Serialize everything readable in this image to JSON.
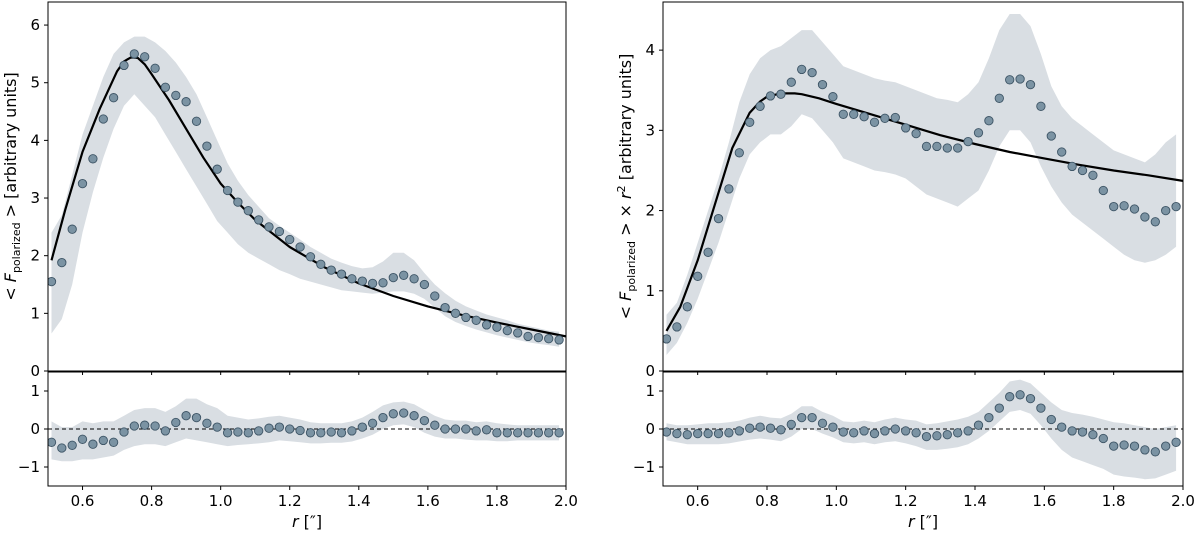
{
  "colors": {
    "band": "#d9dee3",
    "marker_fill": "#7b93a3",
    "marker_edge": "#3e5566",
    "model_line": "#000000",
    "zero_line": "#000000"
  },
  "chart_data": [
    {
      "type": "scatter",
      "name": "left-top",
      "xlabel_prefix": "r",
      "xlabel_unit": "[″]",
      "ylabel_prefix": "< F",
      "ylabel_sub": "polarized",
      "ylabel_suffix": " > [arbitrary units]",
      "xlim": [
        0.5,
        2.0
      ],
      "ylim": [
        0,
        6.4
      ],
      "xticks": [
        "0.6",
        "0.8",
        "1.0",
        "1.2",
        "1.4",
        "1.6",
        "1.8",
        "2.0"
      ],
      "yticks": [
        "0",
        "1",
        "2",
        "3",
        "4",
        "5",
        "6"
      ],
      "x": [
        0.51,
        0.54,
        0.57,
        0.6,
        0.63,
        0.66,
        0.69,
        0.72,
        0.75,
        0.78,
        0.81,
        0.84,
        0.87,
        0.9,
        0.93,
        0.96,
        0.99,
        1.02,
        1.05,
        1.08,
        1.11,
        1.14,
        1.17,
        1.2,
        1.23,
        1.26,
        1.29,
        1.32,
        1.35,
        1.38,
        1.41,
        1.44,
        1.47,
        1.5,
        1.53,
        1.56,
        1.59,
        1.62,
        1.65,
        1.68,
        1.71,
        1.74,
        1.77,
        1.8,
        1.83,
        1.86,
        1.89,
        1.92,
        1.95,
        1.98
      ],
      "y": [
        1.55,
        1.88,
        2.46,
        3.25,
        3.68,
        4.37,
        4.74,
        5.3,
        5.5,
        5.45,
        5.25,
        4.92,
        4.78,
        4.67,
        4.33,
        3.9,
        3.5,
        3.13,
        2.93,
        2.78,
        2.62,
        2.5,
        2.42,
        2.28,
        2.15,
        1.98,
        1.85,
        1.75,
        1.68,
        1.6,
        1.56,
        1.52,
        1.53,
        1.62,
        1.66,
        1.6,
        1.5,
        1.3,
        1.1,
        1.0,
        0.93,
        0.88,
        0.8,
        0.76,
        0.7,
        0.66,
        0.6,
        0.58,
        0.56,
        0.54
      ],
      "band_lower": [
        0.65,
        0.9,
        1.5,
        2.4,
        3.1,
        3.7,
        4.2,
        4.6,
        4.8,
        4.6,
        4.4,
        4.1,
        3.8,
        3.5,
        3.2,
        2.9,
        2.6,
        2.4,
        2.2,
        2.05,
        1.95,
        1.85,
        1.75,
        1.68,
        1.6,
        1.55,
        1.5,
        1.45,
        1.4,
        1.38,
        1.36,
        1.34,
        1.36,
        1.38,
        1.38,
        1.34,
        1.25,
        1.1,
        0.95,
        0.85,
        0.78,
        0.72,
        0.67,
        0.62,
        0.58,
        0.54,
        0.5,
        0.47,
        0.45,
        0.42
      ],
      "band_upper": [
        2.4,
        2.7,
        3.4,
        4.1,
        4.6,
        5.1,
        5.5,
        5.7,
        5.8,
        5.8,
        5.7,
        5.55,
        5.35,
        5.1,
        4.8,
        4.4,
        4.0,
        3.6,
        3.3,
        3.05,
        2.85,
        2.65,
        2.52,
        2.4,
        2.28,
        2.15,
        2.05,
        1.95,
        1.88,
        1.82,
        1.78,
        1.8,
        1.9,
        2.05,
        2.05,
        1.92,
        1.7,
        1.5,
        1.35,
        1.22,
        1.12,
        1.05,
        0.98,
        0.93,
        0.88,
        0.82,
        0.78,
        0.74,
        0.7,
        0.68
      ],
      "model_x": [
        0.51,
        0.55,
        0.6,
        0.65,
        0.7,
        0.72,
        0.74,
        0.76,
        0.78,
        0.8,
        0.85,
        0.9,
        0.95,
        1.0,
        1.05,
        1.1,
        1.2,
        1.3,
        1.4,
        1.5,
        1.6,
        1.7,
        1.8,
        1.9,
        2.0
      ],
      "model_y": [
        1.92,
        2.8,
        3.8,
        4.55,
        5.2,
        5.37,
        5.44,
        5.43,
        5.32,
        5.15,
        4.7,
        4.2,
        3.7,
        3.25,
        2.92,
        2.62,
        2.15,
        1.8,
        1.52,
        1.3,
        1.12,
        0.97,
        0.84,
        0.72,
        0.6
      ]
    },
    {
      "type": "scatter",
      "name": "left-bottom",
      "xlabel_prefix": "r",
      "xlabel_unit": "[″]",
      "xlim": [
        0.5,
        2.0
      ],
      "ylim": [
        -1.5,
        1.5
      ],
      "xticks": [
        "0.6",
        "0.8",
        "1.0",
        "1.2",
        "1.4",
        "1.6",
        "1.8",
        "2.0"
      ],
      "yticks": [
        "−1",
        "0",
        "1"
      ],
      "x": [
        0.51,
        0.54,
        0.57,
        0.6,
        0.63,
        0.66,
        0.69,
        0.72,
        0.75,
        0.78,
        0.81,
        0.84,
        0.87,
        0.9,
        0.93,
        0.96,
        0.99,
        1.02,
        1.05,
        1.08,
        1.11,
        1.14,
        1.17,
        1.2,
        1.23,
        1.26,
        1.29,
        1.32,
        1.35,
        1.38,
        1.41,
        1.44,
        1.47,
        1.5,
        1.53,
        1.56,
        1.59,
        1.62,
        1.65,
        1.68,
        1.71,
        1.74,
        1.77,
        1.8,
        1.83,
        1.86,
        1.89,
        1.92,
        1.95,
        1.98
      ],
      "y": [
        -0.35,
        -0.5,
        -0.43,
        -0.27,
        -0.4,
        -0.3,
        -0.35,
        -0.08,
        0.08,
        0.1,
        0.08,
        -0.05,
        0.17,
        0.35,
        0.3,
        0.15,
        0.05,
        -0.1,
        -0.08,
        -0.1,
        -0.05,
        0.02,
        0.05,
        0.0,
        -0.04,
        -0.1,
        -0.1,
        -0.08,
        -0.1,
        -0.05,
        0.05,
        0.15,
        0.3,
        0.4,
        0.42,
        0.35,
        0.22,
        0.1,
        0.0,
        0.0,
        0.0,
        -0.05,
        -0.02,
        -0.1,
        -0.1,
        -0.1,
        -0.1,
        -0.1,
        -0.1,
        -0.1
      ],
      "band_lower": [
        -0.8,
        -0.85,
        -0.85,
        -0.8,
        -0.8,
        -0.75,
        -0.7,
        -0.55,
        -0.45,
        -0.4,
        -0.4,
        -0.45,
        -0.35,
        -0.25,
        -0.3,
        -0.35,
        -0.4,
        -0.45,
        -0.42,
        -0.4,
        -0.38,
        -0.35,
        -0.3,
        -0.32,
        -0.35,
        -0.38,
        -0.38,
        -0.36,
        -0.36,
        -0.33,
        -0.25,
        -0.15,
        0.0,
        0.1,
        0.12,
        0.05,
        -0.1,
        -0.2,
        -0.25,
        -0.25,
        -0.28,
        -0.3,
        -0.3,
        -0.32,
        -0.32,
        -0.3,
        -0.3,
        -0.3,
        -0.3,
        -0.3
      ],
      "band_upper": [
        0.2,
        0.05,
        0.05,
        0.2,
        0.15,
        0.2,
        0.2,
        0.35,
        0.5,
        0.55,
        0.55,
        0.45,
        0.6,
        0.8,
        0.8,
        0.65,
        0.55,
        0.35,
        0.3,
        0.25,
        0.28,
        0.32,
        0.35,
        0.3,
        0.25,
        0.18,
        0.15,
        0.15,
        0.15,
        0.2,
        0.3,
        0.45,
        0.62,
        0.7,
        0.72,
        0.65,
        0.5,
        0.35,
        0.25,
        0.22,
        0.22,
        0.18,
        0.2,
        0.15,
        0.12,
        0.1,
        0.1,
        0.1,
        0.1,
        0.1
      ],
      "zero_line": 0
    },
    {
      "type": "scatter",
      "name": "right-top",
      "xlabel_prefix": "r",
      "xlabel_unit": "[″]",
      "ylabel_prefix": "< F",
      "ylabel_sub": "polarized",
      "ylabel_suffix": " > × r",
      "ylabel_sup": "2",
      "ylabel_tail": " [arbitrary units]",
      "xlim": [
        0.5,
        2.0
      ],
      "ylim": [
        0,
        4.6
      ],
      "xticks": [
        "0.6",
        "0.8",
        "1.0",
        "1.2",
        "1.4",
        "1.6",
        "1.8",
        "2.0"
      ],
      "yticks": [
        "0",
        "1",
        "2",
        "3",
        "4"
      ],
      "x": [
        0.51,
        0.54,
        0.57,
        0.6,
        0.63,
        0.66,
        0.69,
        0.72,
        0.75,
        0.78,
        0.81,
        0.84,
        0.87,
        0.9,
        0.93,
        0.96,
        0.99,
        1.02,
        1.05,
        1.08,
        1.11,
        1.14,
        1.17,
        1.2,
        1.23,
        1.26,
        1.29,
        1.32,
        1.35,
        1.38,
        1.41,
        1.44,
        1.47,
        1.5,
        1.53,
        1.56,
        1.59,
        1.62,
        1.65,
        1.68,
        1.71,
        1.74,
        1.77,
        1.8,
        1.83,
        1.86,
        1.89,
        1.92,
        1.95,
        1.98
      ],
      "y": [
        0.4,
        0.55,
        0.8,
        1.18,
        1.48,
        1.9,
        2.27,
        2.72,
        3.1,
        3.3,
        3.43,
        3.45,
        3.6,
        3.76,
        3.72,
        3.57,
        3.42,
        3.2,
        3.2,
        3.17,
        3.1,
        3.15,
        3.16,
        3.03,
        2.96,
        2.8,
        2.8,
        2.78,
        2.78,
        2.86,
        2.97,
        3.12,
        3.4,
        3.63,
        3.64,
        3.57,
        3.3,
        2.93,
        2.73,
        2.55,
        2.5,
        2.44,
        2.25,
        2.05,
        2.06,
        2.02,
        1.92,
        1.86,
        2.0,
        2.05
      ],
      "band_lower": [
        0.2,
        0.35,
        0.6,
        0.9,
        1.25,
        1.6,
        2.0,
        2.4,
        2.7,
        2.85,
        2.95,
        2.95,
        3.05,
        3.2,
        3.15,
        3.0,
        2.85,
        2.65,
        2.6,
        2.55,
        2.5,
        2.48,
        2.45,
        2.4,
        2.3,
        2.2,
        2.15,
        2.1,
        2.05,
        2.15,
        2.25,
        2.5,
        2.8,
        3.0,
        3.0,
        2.85,
        2.55,
        2.3,
        2.1,
        1.95,
        1.85,
        1.75,
        1.65,
        1.55,
        1.45,
        1.38,
        1.35,
        1.38,
        1.45,
        1.55
      ],
      "band_upper": [
        0.7,
        0.85,
        1.2,
        1.6,
        2.0,
        2.4,
        2.85,
        3.35,
        3.7,
        3.9,
        4.0,
        4.05,
        4.15,
        4.25,
        4.25,
        4.1,
        3.95,
        3.8,
        3.75,
        3.7,
        3.65,
        3.62,
        3.6,
        3.55,
        3.5,
        3.45,
        3.4,
        3.38,
        3.35,
        3.45,
        3.6,
        3.9,
        4.25,
        4.45,
        4.45,
        4.3,
        3.95,
        3.55,
        3.3,
        3.15,
        3.05,
        2.95,
        2.85,
        2.75,
        2.7,
        2.65,
        2.6,
        2.7,
        2.85,
        2.95
      ],
      "model_x": [
        0.51,
        0.55,
        0.6,
        0.65,
        0.7,
        0.75,
        0.78,
        0.8,
        0.83,
        0.85,
        0.88,
        0.9,
        0.95,
        1.0,
        1.1,
        1.2,
        1.3,
        1.4,
        1.5,
        1.6,
        1.7,
        1.8,
        1.9,
        2.0
      ],
      "model_y": [
        0.5,
        0.8,
        1.38,
        2.08,
        2.78,
        3.22,
        3.36,
        3.42,
        3.45,
        3.46,
        3.46,
        3.45,
        3.4,
        3.33,
        3.2,
        3.07,
        2.94,
        2.83,
        2.73,
        2.65,
        2.57,
        2.5,
        2.44,
        2.37
      ]
    },
    {
      "type": "scatter",
      "name": "right-bottom",
      "xlabel_prefix": "r",
      "xlabel_unit": "[″]",
      "xlim": [
        0.5,
        2.0
      ],
      "ylim": [
        -1.5,
        1.5
      ],
      "xticks": [
        "0.6",
        "0.8",
        "1.0",
        "1.2",
        "1.4",
        "1.6",
        "1.8",
        "2.0"
      ],
      "yticks": [
        "−1",
        "0",
        "1"
      ],
      "x": [
        0.51,
        0.54,
        0.57,
        0.6,
        0.63,
        0.66,
        0.69,
        0.72,
        0.75,
        0.78,
        0.81,
        0.84,
        0.87,
        0.9,
        0.93,
        0.96,
        0.99,
        1.02,
        1.05,
        1.08,
        1.11,
        1.14,
        1.17,
        1.2,
        1.23,
        1.26,
        1.29,
        1.32,
        1.35,
        1.38,
        1.41,
        1.44,
        1.47,
        1.5,
        1.53,
        1.56,
        1.59,
        1.62,
        1.65,
        1.68,
        1.71,
        1.74,
        1.77,
        1.8,
        1.83,
        1.86,
        1.89,
        1.92,
        1.95,
        1.98
      ],
      "y": [
        -0.08,
        -0.12,
        -0.15,
        -0.12,
        -0.12,
        -0.12,
        -0.1,
        -0.05,
        0.02,
        0.05,
        0.02,
        -0.02,
        0.12,
        0.3,
        0.3,
        0.15,
        0.05,
        -0.08,
        -0.1,
        -0.05,
        -0.12,
        -0.05,
        0.0,
        -0.05,
        -0.1,
        -0.2,
        -0.18,
        -0.15,
        -0.1,
        -0.05,
        0.1,
        0.3,
        0.55,
        0.85,
        0.9,
        0.8,
        0.55,
        0.25,
        0.05,
        -0.05,
        -0.08,
        -0.15,
        -0.25,
        -0.45,
        -0.42,
        -0.45,
        -0.55,
        -0.6,
        -0.45,
        -0.35
      ],
      "band_lower": [
        -0.3,
        -0.35,
        -0.4,
        -0.4,
        -0.4,
        -0.4,
        -0.38,
        -0.33,
        -0.28,
        -0.25,
        -0.28,
        -0.32,
        -0.2,
        0.0,
        0.0,
        -0.12,
        -0.22,
        -0.35,
        -0.38,
        -0.35,
        -0.4,
        -0.35,
        -0.32,
        -0.38,
        -0.45,
        -0.55,
        -0.55,
        -0.52,
        -0.48,
        -0.4,
        -0.25,
        -0.05,
        0.2,
        0.45,
        0.5,
        0.4,
        0.1,
        -0.25,
        -0.55,
        -0.75,
        -0.85,
        -0.95,
        -1.05,
        -1.2,
        -1.25,
        -1.28,
        -1.32,
        -1.3,
        -1.2,
        -1.1
      ],
      "band_upper": [
        0.15,
        0.1,
        0.1,
        0.12,
        0.15,
        0.15,
        0.18,
        0.22,
        0.3,
        0.35,
        0.3,
        0.28,
        0.4,
        0.6,
        0.6,
        0.45,
        0.35,
        0.2,
        0.18,
        0.22,
        0.18,
        0.25,
        0.3,
        0.25,
        0.22,
        0.12,
        0.15,
        0.2,
        0.25,
        0.32,
        0.45,
        0.7,
        0.95,
        1.25,
        1.3,
        1.2,
        0.95,
        0.7,
        0.5,
        0.42,
        0.38,
        0.32,
        0.25,
        0.18,
        0.15,
        0.1,
        0.05,
        0.0,
        0.05,
        0.1
      ],
      "zero_line": 0
    }
  ]
}
